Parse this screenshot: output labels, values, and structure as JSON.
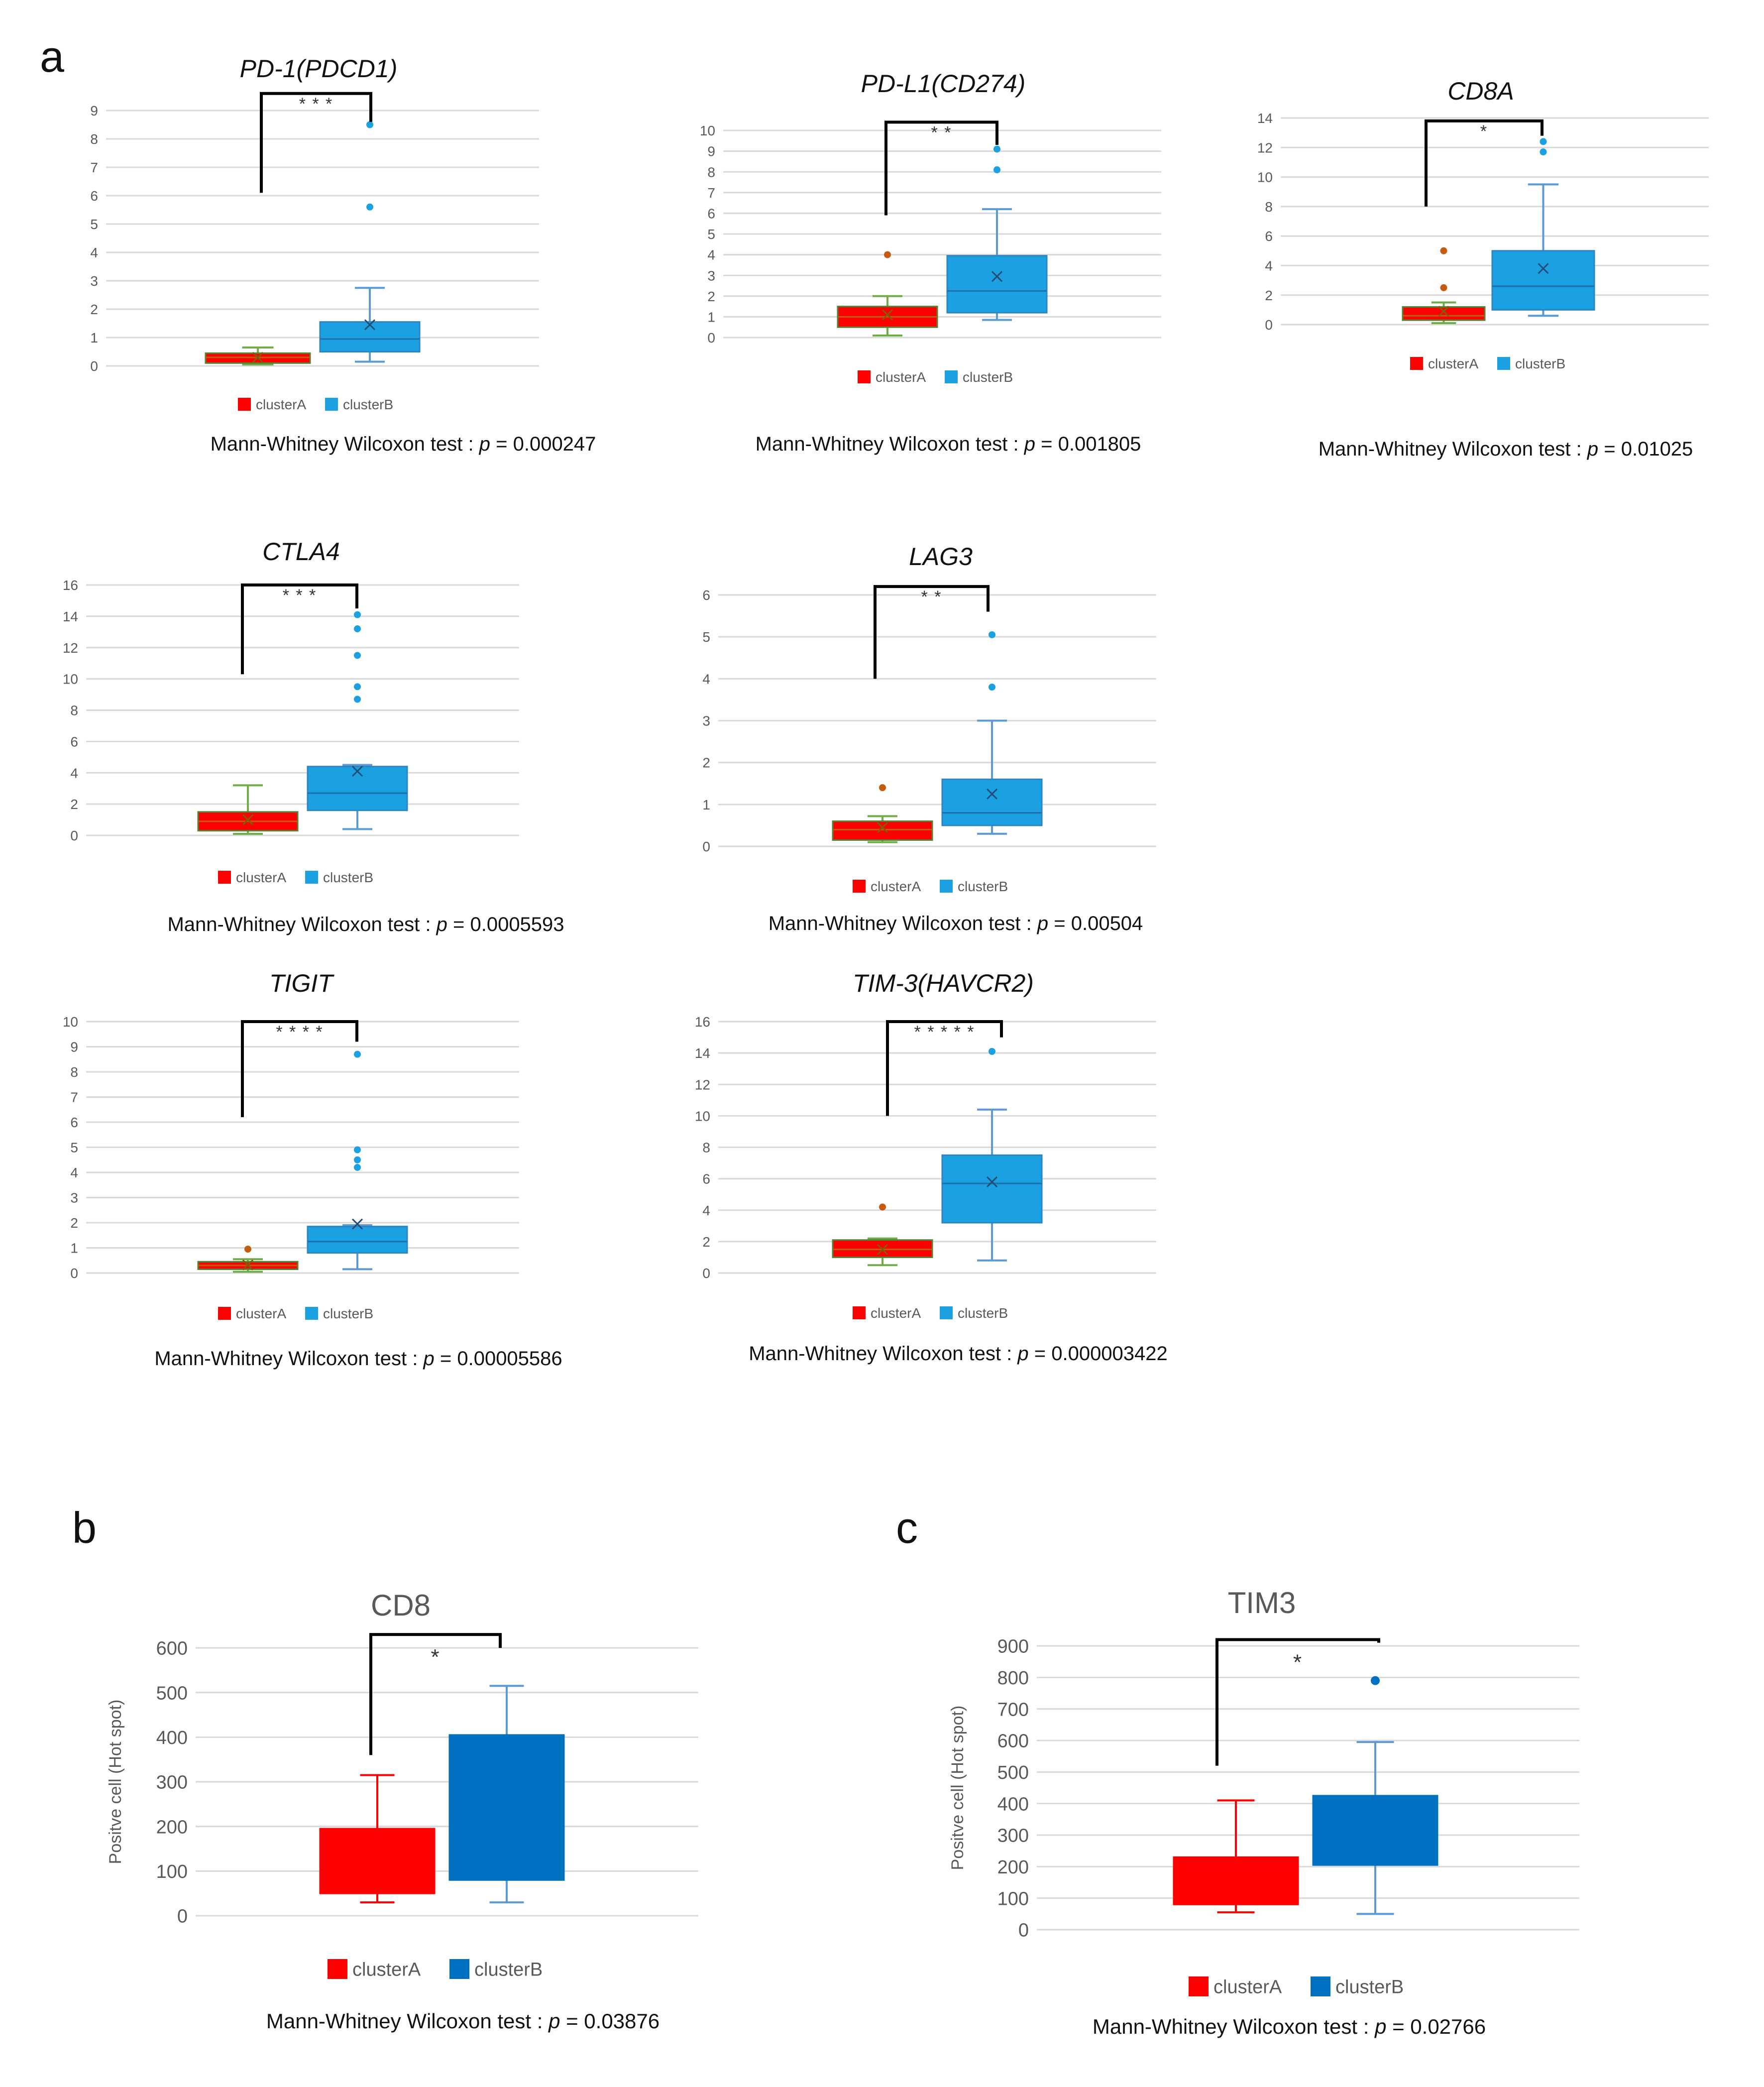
{
  "panel_labels": [
    "a",
    "b",
    "c"
  ],
  "legend": [
    "clusterA",
    "clusterB"
  ],
  "colors": {
    "clusterA_small": "#ff0000",
    "clusterA_small_border": "#548235",
    "clusterB_small": "#1ba1e2",
    "clusterA_big": "#ff0000",
    "clusterB_big": "#0070c0",
    "grid": "#d9d9d9",
    "axis_text": "#595959",
    "bracket": "#000000"
  },
  "chart_data": [
    {
      "panel": "a",
      "type": "box",
      "title": "PD-1(PDCD1)",
      "ylim": [
        0,
        9
      ],
      "yticks": [
        0,
        1,
        2,
        3,
        4,
        5,
        6,
        7,
        8,
        9
      ],
      "series": [
        {
          "name": "clusterA",
          "min": 0.05,
          "q1": 0.1,
          "median": 0.3,
          "q3": 0.45,
          "max": 0.65,
          "mean": 0.3,
          "outliers": []
        },
        {
          "name": "clusterB",
          "min": 0.15,
          "q1": 0.5,
          "median": 0.95,
          "q3": 1.55,
          "max": 2.75,
          "mean": 1.45,
          "outliers": [
            5.6,
            8.5
          ]
        }
      ],
      "significance": "* * *",
      "bracket_top": 9.6,
      "bracket_left_bottom": 6.1,
      "bracket_right_bottom": 8.6,
      "test": "Mann-Whitney Wilcoxon test :",
      "p_label": "p",
      "p_value": "= 0.000247"
    },
    {
      "panel": "a",
      "type": "box",
      "title": "PD-L1(CD274)",
      "ylim": [
        0,
        10
      ],
      "yticks": [
        0,
        1,
        2,
        3,
        4,
        5,
        6,
        7,
        8,
        9,
        10
      ],
      "series": [
        {
          "name": "clusterA",
          "min": 0.1,
          "q1": 0.5,
          "median": 1.0,
          "q3": 1.5,
          "max": 2.0,
          "mean": 1.1,
          "outliers": [
            4.0
          ]
        },
        {
          "name": "clusterB",
          "min": 0.85,
          "q1": 1.2,
          "median": 2.25,
          "q3": 3.95,
          "max": 6.2,
          "mean": 2.95,
          "outliers": [
            8.1,
            9.1
          ]
        }
      ],
      "significance": "* *",
      "bracket_top": 10.4,
      "bracket_left_bottom": 5.9,
      "bracket_right_bottom": 9.3,
      "test": "Mann-Whitney Wilcoxon test :",
      "p_label": "p",
      "p_value": "= 0.001805"
    },
    {
      "panel": "a",
      "type": "box",
      "title": "CD8A",
      "ylim": [
        0,
        14
      ],
      "yticks": [
        0,
        2,
        4,
        6,
        8,
        10,
        12,
        14
      ],
      "series": [
        {
          "name": "clusterA",
          "min": 0.1,
          "q1": 0.3,
          "median": 0.6,
          "q3": 1.2,
          "max": 1.5,
          "mean": 0.9,
          "outliers": [
            2.5,
            5.0
          ]
        },
        {
          "name": "clusterB",
          "min": 0.6,
          "q1": 1.0,
          "median": 2.6,
          "q3": 5.0,
          "max": 9.5,
          "mean": 3.8,
          "outliers": [
            11.7,
            12.4
          ]
        }
      ],
      "significance": "*",
      "bracket_top": 13.8,
      "bracket_left_bottom": 8.0,
      "bracket_right_bottom": 12.8,
      "test": "Mann-Whitney Wilcoxon test :",
      "p_label": "p",
      "p_value": "= 0.01025"
    },
    {
      "panel": "a",
      "type": "box",
      "title": "CTLA4",
      "ylim": [
        0,
        16
      ],
      "yticks": [
        0,
        2,
        4,
        6,
        8,
        10,
        12,
        14,
        16
      ],
      "series": [
        {
          "name": "clusterA",
          "min": 0.1,
          "q1": 0.3,
          "median": 0.9,
          "q3": 1.5,
          "max": 3.2,
          "mean": 1.0,
          "outliers": []
        },
        {
          "name": "clusterB",
          "min": 0.4,
          "q1": 1.6,
          "median": 2.7,
          "q3": 4.4,
          "max": 4.5,
          "mean": 4.1,
          "outliers": [
            8.7,
            9.5,
            11.5,
            13.2,
            14.1
          ]
        }
      ],
      "significance": "* * *",
      "bracket_top": 16.0,
      "bracket_left_bottom": 10.3,
      "bracket_right_bottom": 14.5,
      "test": "Mann-Whitney Wilcoxon test :",
      "p_label": "p",
      "p_value": "= 0.0005593"
    },
    {
      "panel": "a",
      "type": "box",
      "title": "LAG3",
      "ylim": [
        0,
        6
      ],
      "yticks": [
        0,
        1,
        2,
        3,
        4,
        5,
        6
      ],
      "series": [
        {
          "name": "clusterA",
          "min": 0.1,
          "q1": 0.15,
          "median": 0.4,
          "q3": 0.6,
          "max": 0.72,
          "mean": 0.45,
          "outliers": [
            1.4
          ]
        },
        {
          "name": "clusterB",
          "min": 0.3,
          "q1": 0.5,
          "median": 0.8,
          "q3": 1.6,
          "max": 3.0,
          "mean": 1.25,
          "outliers": [
            3.8,
            5.05
          ]
        }
      ],
      "significance": "* *",
      "bracket_top": 6.2,
      "bracket_left_bottom": 4.0,
      "bracket_right_bottom": 5.6,
      "test": "Mann-Whitney Wilcoxon test :",
      "p_label": "p",
      "p_value": "= 0.00504"
    },
    {
      "panel": "a",
      "type": "box",
      "title": "TIGIT",
      "ylim": [
        0,
        10
      ],
      "yticks": [
        0,
        1,
        2,
        3,
        4,
        5,
        6,
        7,
        8,
        9,
        10
      ],
      "series": [
        {
          "name": "clusterA",
          "min": 0.05,
          "q1": 0.15,
          "median": 0.3,
          "q3": 0.45,
          "max": 0.55,
          "mean": 0.32,
          "outliers": [
            0.95
          ]
        },
        {
          "name": "clusterB",
          "min": 0.15,
          "q1": 0.8,
          "median": 1.25,
          "q3": 1.85,
          "max": 1.9,
          "mean": 1.95,
          "outliers": [
            4.2,
            4.5,
            4.9,
            8.7
          ]
        }
      ],
      "significance": "* * * *",
      "bracket_top": 10.0,
      "bracket_left_bottom": 6.2,
      "bracket_right_bottom": 9.2,
      "test": "Mann-Whitney Wilcoxon test :",
      "p_label": "p",
      "p_value": "= 0.00005586"
    },
    {
      "panel": "a",
      "type": "box",
      "title": "TIM-3(HAVCR2)",
      "ylim": [
        0,
        16
      ],
      "yticks": [
        0,
        2,
        4,
        6,
        8,
        10,
        12,
        14,
        16
      ],
      "series": [
        {
          "name": "clusterA",
          "min": 0.5,
          "q1": 1.0,
          "median": 1.5,
          "q3": 2.1,
          "max": 2.2,
          "mean": 1.5,
          "outliers": [
            4.2
          ]
        },
        {
          "name": "clusterB",
          "min": 0.8,
          "q1": 3.2,
          "median": 5.7,
          "q3": 7.5,
          "max": 10.4,
          "mean": 5.8,
          "outliers": [
            14.1
          ]
        }
      ],
      "significance": "* * * * *",
      "bracket_top": 16.0,
      "bracket_left_bottom": 10.0,
      "bracket_right_bottom": 15.0,
      "test": "Mann-Whitney Wilcoxon test :",
      "p_label": "p",
      "p_value": "= 0.000003422"
    },
    {
      "panel": "b",
      "type": "box",
      "title": "CD8",
      "ylabel": "Positve cell (Hot spot)",
      "ylim": [
        0,
        600
      ],
      "yticks": [
        0,
        100,
        200,
        300,
        400,
        500,
        600
      ],
      "series": [
        {
          "name": "clusterA",
          "min": 30,
          "q1": 50,
          "median": 195,
          "q3": 195,
          "max": 315,
          "mean": null,
          "outliers": []
        },
        {
          "name": "clusterB",
          "min": 30,
          "q1": 80,
          "median": 400,
          "q3": 405,
          "max": 515,
          "mean": null,
          "outliers": []
        }
      ],
      "significance": "*",
      "bracket_top": 630,
      "bracket_left_bottom": 360,
      "bracket_right_bottom": 600,
      "test": "Mann-Whitney Wilcoxon test :",
      "p_label": "p",
      "p_value": "= 0.03876"
    },
    {
      "panel": "c",
      "type": "box",
      "title": "TIM3",
      "ylabel": "Positve cell (Hot spot)",
      "ylim": [
        0,
        900
      ],
      "yticks": [
        0,
        100,
        200,
        300,
        400,
        500,
        600,
        700,
        800,
        900
      ],
      "series": [
        {
          "name": "clusterA",
          "min": 55,
          "q1": 80,
          "median": 225,
          "q3": 230,
          "max": 410,
          "mean": null,
          "outliers": []
        },
        {
          "name": "clusterB",
          "min": 50,
          "q1": 205,
          "median": 420,
          "q3": 425,
          "max": 595,
          "mean": null,
          "outliers": [
            790
          ]
        }
      ],
      "significance": "*",
      "bracket_top": 920,
      "bracket_left_bottom": 520,
      "bracket_right_bottom": 910,
      "test": "Mann-Whitney Wilcoxon test :",
      "p_label": "p",
      "p_value": "= 0.02766"
    }
  ]
}
